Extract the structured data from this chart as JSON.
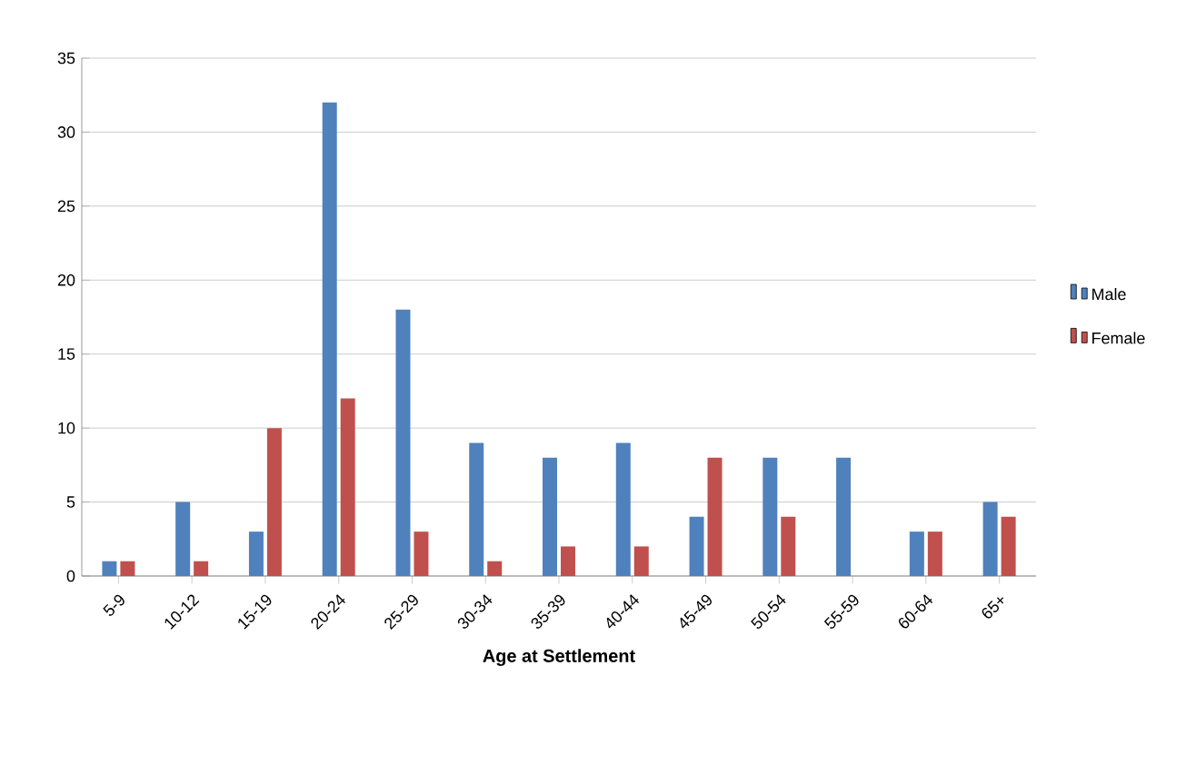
{
  "chart_data": {
    "type": "bar",
    "xlabel": "Age at Settlement",
    "categories": [
      "5-9",
      "10-12",
      "15-19",
      "20-24",
      "25-29",
      "30-34",
      "35-39",
      "40-44",
      "45-49",
      "50-54",
      "55-59",
      "60-64",
      "65+"
    ],
    "series": [
      {
        "name": "Male",
        "color": "#4f81bd",
        "values": [
          1,
          5,
          3,
          32,
          18,
          9,
          8,
          9,
          4,
          8,
          8,
          3,
          5
        ]
      },
      {
        "name": "Female",
        "color": "#c0504d",
        "values": [
          1,
          1,
          10,
          12,
          3,
          1,
          2,
          2,
          8,
          4,
          0,
          3,
          4
        ]
      }
    ],
    "ylim": [
      0,
      35
    ],
    "yticks": [
      0,
      5,
      10,
      15,
      20,
      25,
      30,
      35
    ],
    "grid": "y",
    "legend": "right"
  }
}
